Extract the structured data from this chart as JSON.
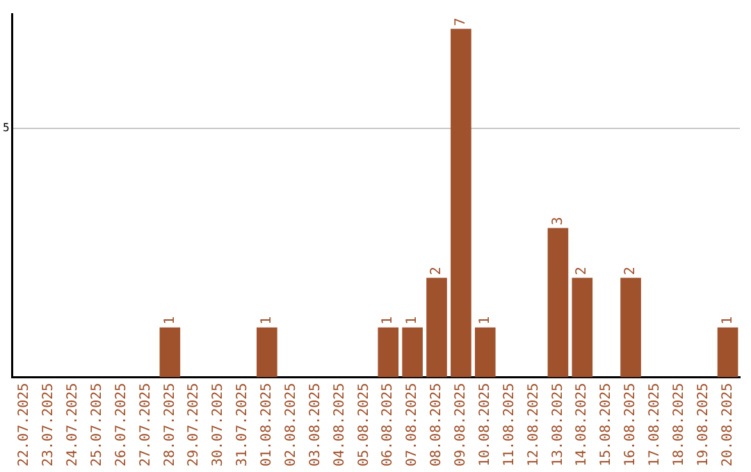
{
  "chart_data": {
    "type": "bar",
    "categories": [
      "22.07.2025",
      "23.07.2025",
      "24.07.2025",
      "25.07.2025",
      "26.07.2025",
      "27.07.2025",
      "28.07.2025",
      "29.07.2025",
      "30.07.2025",
      "31.07.2025",
      "01.08.2025",
      "02.08.2025",
      "03.08.2025",
      "04.08.2025",
      "05.08.2025",
      "06.08.2025",
      "07.08.2025",
      "08.08.2025",
      "09.08.2025",
      "10.08.2025",
      "11.08.2025",
      "12.08.2025",
      "13.08.2025",
      "14.08.2025",
      "15.08.2025",
      "16.08.2025",
      "17.08.2025",
      "18.08.2025",
      "19.08.2025",
      "20.08.2025"
    ],
    "values": [
      0,
      0,
      0,
      0,
      0,
      0,
      1,
      0,
      0,
      0,
      1,
      0,
      0,
      0,
      0,
      1,
      1,
      2,
      7,
      1,
      0,
      0,
      3,
      2,
      0,
      2,
      0,
      0,
      0,
      1
    ],
    "value_labels": [
      null,
      null,
      null,
      null,
      null,
      null,
      "1",
      null,
      null,
      null,
      "1",
      null,
      null,
      null,
      null,
      "1",
      "1",
      "2",
      "7",
      "1",
      null,
      null,
      "3",
      "2",
      null,
      "2",
      null,
      null,
      null,
      "1"
    ],
    "color": "#a0522d",
    "ylim": [
      0,
      7.3
    ],
    "yticks": [
      5
    ],
    "grid": "y",
    "legend": false
  }
}
